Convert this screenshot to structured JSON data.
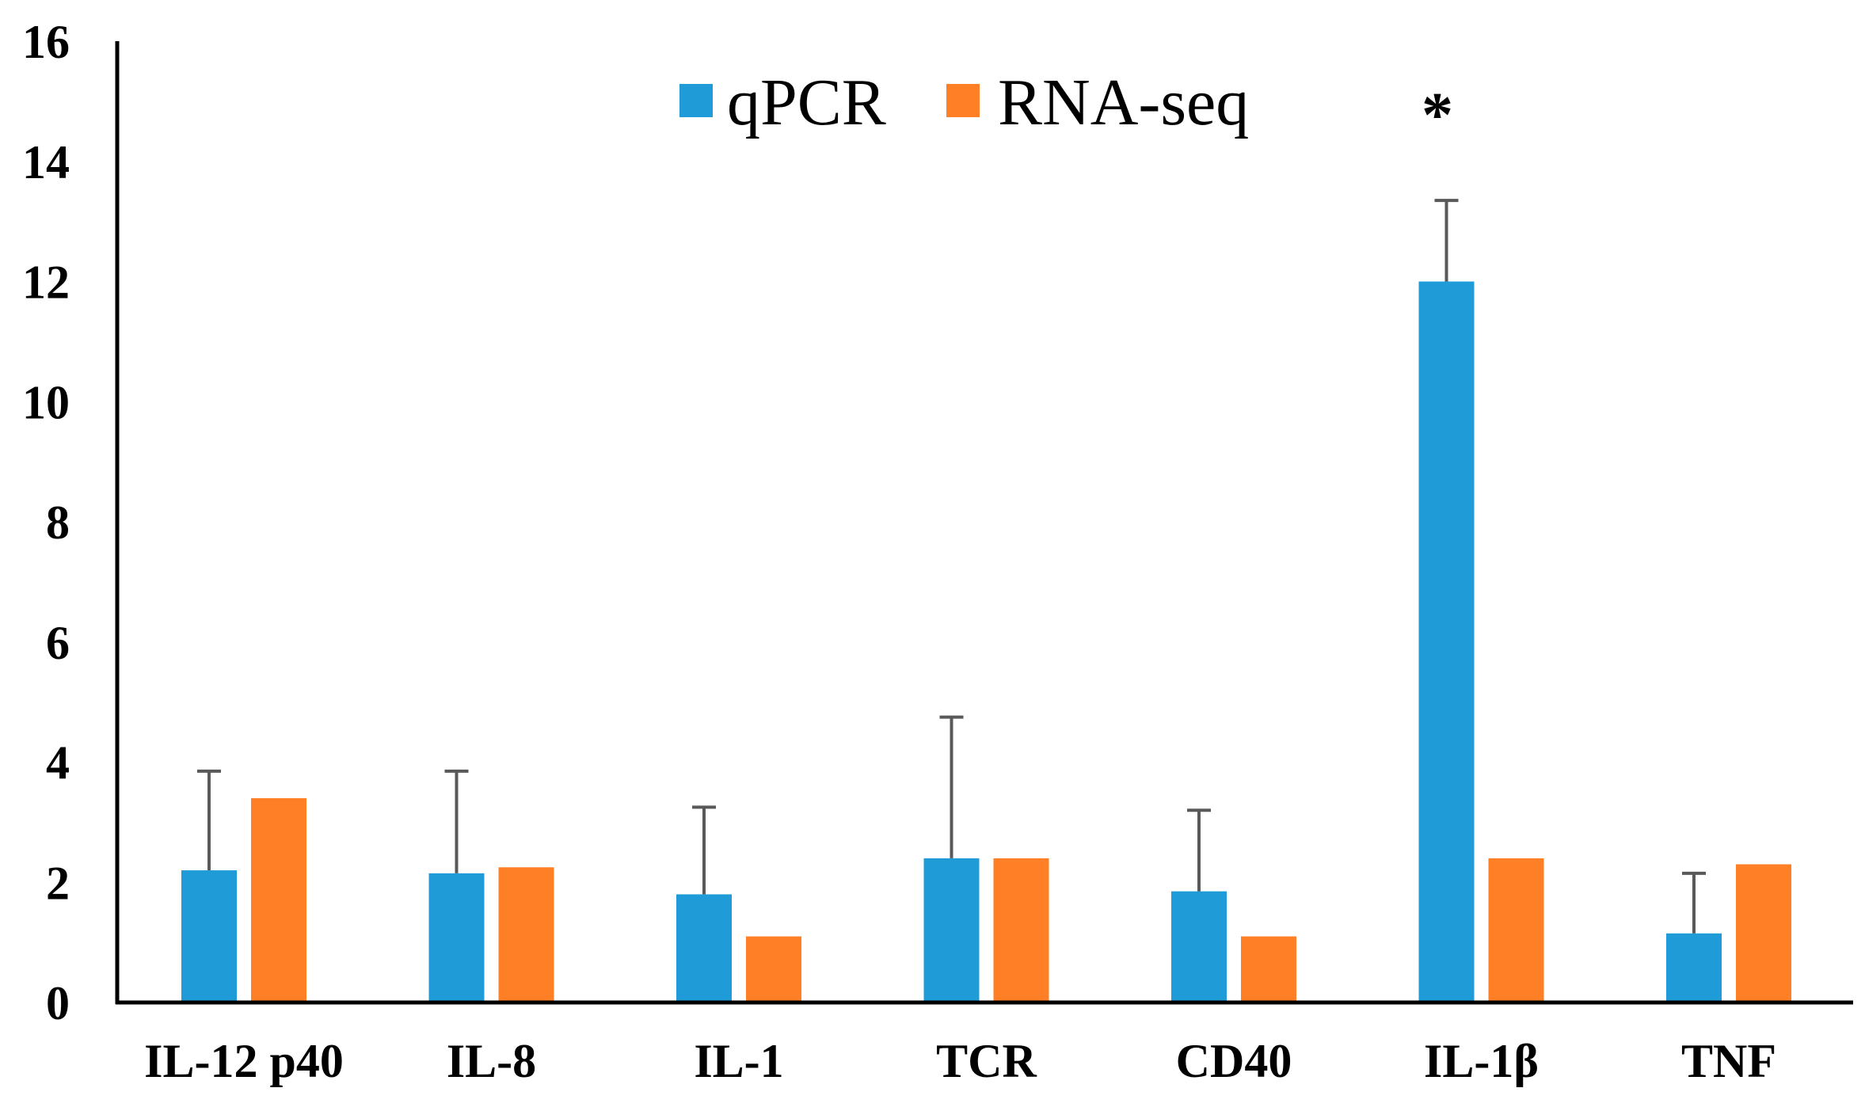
{
  "chart_data": {
    "type": "bar",
    "title": "",
    "xlabel": "",
    "ylabel": "",
    "ylim": [
      0,
      16
    ],
    "yticks": [
      "0",
      "2",
      "4",
      "6",
      "8",
      "10",
      "12",
      "14",
      "16"
    ],
    "grid": false,
    "legend_position": "top-center",
    "categories": [
      "IL-12 p40",
      "IL-8",
      "IL-1",
      "TCR",
      "CD40",
      "IL-1β",
      "TNF"
    ],
    "series": [
      {
        "name": "qPCR",
        "color": "#1F9CD8",
        "values": [
          2.2,
          2.15,
          1.8,
          2.4,
          1.85,
          12.0,
          1.15
        ],
        "error_upper": [
          3.85,
          3.85,
          3.25,
          4.75,
          3.2,
          13.35,
          2.15
        ]
      },
      {
        "name": "RNA-seq",
        "color": "#FF7F27",
        "values": [
          3.4,
          2.25,
          1.1,
          2.4,
          1.1,
          2.4,
          2.3
        ]
      }
    ],
    "annotations": [
      {
        "text": "*",
        "category": "IL-1β"
      }
    ]
  }
}
